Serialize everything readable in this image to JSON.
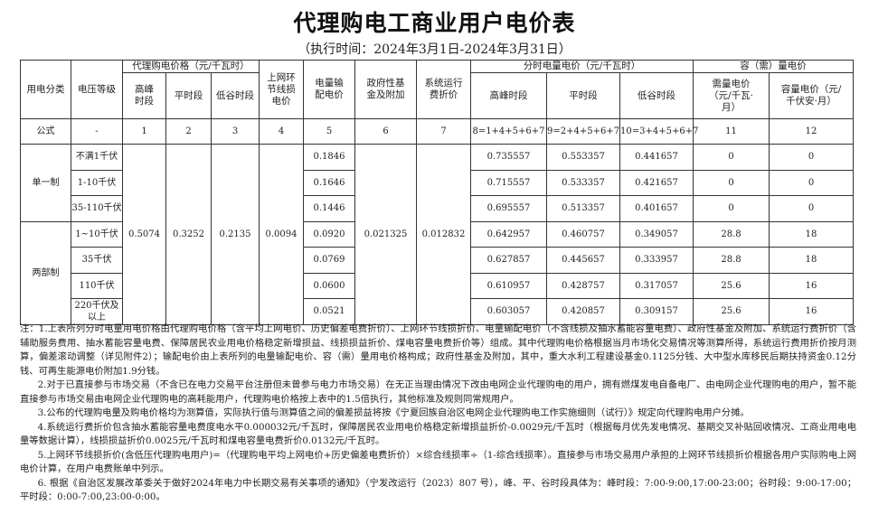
{
  "title": "代理购电工商业用户电价表",
  "subtitle": "（执行时间：2024年3月1日-2024年3月31日）",
  "table": {
    "headers": {
      "category": "用电分类",
      "voltage": "电压等级",
      "agency_group": "代理购电价格（元/千瓦时）",
      "agency_peak": "高峰时段",
      "agency_flat": "平时段",
      "agency_valley": "低谷时段",
      "line_loss": "上网环节线损电价",
      "transmission": "电量输配电价",
      "gov_fund": "政府性基金及附加",
      "sys_fee": "系统运行费折价",
      "tou_group": "分时电量电价（元/千瓦时）",
      "tou_peak": "高峰时段",
      "tou_flat": "平时段",
      "tou_valley": "低谷时段",
      "capacity_group": "容（需）量电价",
      "demand": "需量电价（元/千瓦·月）",
      "capacity": "容量电价（元/千伏安·月）"
    },
    "formula": [
      "公式",
      "-",
      "1",
      "2",
      "3",
      "4",
      "5",
      "6",
      "7",
      "8=1+4+5+6+7",
      "9=2+4+5+6+7",
      "10=3+4+5+6+7",
      "11",
      "12"
    ],
    "shared": {
      "agency_peak": "0.5074",
      "agency_flat": "0.3252",
      "agency_valley": "0.2135",
      "line_loss": "0.0094",
      "gov_fund": "0.021325",
      "sys_fee": "0.012832"
    },
    "groups": [
      {
        "category": "单一制",
        "rows": [
          {
            "voltage": "不满1千伏",
            "transmission": "0.1846",
            "peak": "0.735557",
            "flat": "0.553357",
            "valley": "0.441657",
            "demand": "0",
            "capacity": "0"
          },
          {
            "voltage": "1-10千伏",
            "transmission": "0.1646",
            "peak": "0.715557",
            "flat": "0.533357",
            "valley": "0.421657",
            "demand": "0",
            "capacity": "0"
          },
          {
            "voltage": "35-110千伏",
            "transmission": "0.1446",
            "peak": "0.695557",
            "flat": "0.513357",
            "valley": "0.401657",
            "demand": "0",
            "capacity": "0"
          }
        ]
      },
      {
        "category": "两部制",
        "rows": [
          {
            "voltage": "1~10千伏",
            "transmission": "0.0920",
            "peak": "0.642957",
            "flat": "0.460757",
            "valley": "0.349057",
            "demand": "28.8",
            "capacity": "18"
          },
          {
            "voltage": "35千伏",
            "transmission": "0.0769",
            "peak": "0.627857",
            "flat": "0.445657",
            "valley": "0.333957",
            "demand": "28.8",
            "capacity": "18"
          },
          {
            "voltage": "110千伏",
            "transmission": "0.0600",
            "peak": "0.610957",
            "flat": "0.428757",
            "valley": "0.317057",
            "demand": "25.6",
            "capacity": "16"
          },
          {
            "voltage": "220千伏及以上",
            "transmission": "0.0521",
            "peak": "0.603057",
            "flat": "0.420857",
            "valley": "0.309157",
            "demand": "25.6",
            "capacity": "16"
          }
        ]
      }
    ]
  },
  "notes": [
    "注：1.上表所列分时电量用电价格由代理购电价格（含平均上网电价、历史偏差电费折价）、上网环节线损折价、电量输配电价（不含线损及抽水蓄能容量电费）、政府性基金及附加、系统运行费折价（含辅助服务费用、抽水蓄能容量电费、保障居民农业用电价格稳定新增损益、线损损益折价、煤电容量电费折价等）组成。其中代理购电价格根据当月市场化交易情况等测算所得，系统运行费用折价按月测算，偏差滚动调整（详见附件2）；输配电价由上表所列的电量输配电价、容（需）量用电价格构成；政府性基金及附加，其中，重大水利工程建设基金0.1125分钱、大中型水库移民后期扶持资金0.12分钱、可再生能源电价附加1.9分钱。",
    "2.对于已直接参与市场交易（不含已在电力交易平台注册但未曾参与电力市场交易）在无正当理由情况下改由电网企业代理购电的用户，拥有燃煤发电自备电厂、由电网企业代理购电的用户，暂不能直接参与市场交易由电网企业代理购电的高耗能用户，代理购电价格按上表中的1.5倍执行，其他标准及规则同常规用户。",
    "3.公布的代理购电量及购电价格均为测算值，实际执行值与测算值之间的偏差损益将按《宁夏回族自治区电网企业代理购电工作实施细则（试行）》规定向代理购电用户分摊。",
    "4.系统运行费折价包含抽水蓄能容量电费度电水平0.000032元/千瓦时，保障居民农业用电价格稳定新增损益折价-0.0029元/千瓦时（根据每月优先发电情况、基期交叉补贴回收情况、工商业用电电量等数据计算），线损损益折价0.0025元/千瓦时和煤电容量电费折价0.0132元/千瓦时。",
    "5.上网环节线损折价(含低压代理购电用户)=（代理购电平均上网电价+历史偏差电费折价）×综合线损率÷（1-综合线损率）。直接参与市场交易用户承担的上网环节线损折价根据各用户实际购电上网电价计算，在用户电费账单中列示。",
    "6. 根据《自治区发展改革委关于做好2024年电力中长期交易有关事项的通知》（宁发改运行（2023）807 号），峰、平、谷时段具体为：峰时段：7:00-9:00,17:00-23:00；谷时段：9:00-17:00；平时段：0:00-7:00,23:00-0:00。"
  ]
}
